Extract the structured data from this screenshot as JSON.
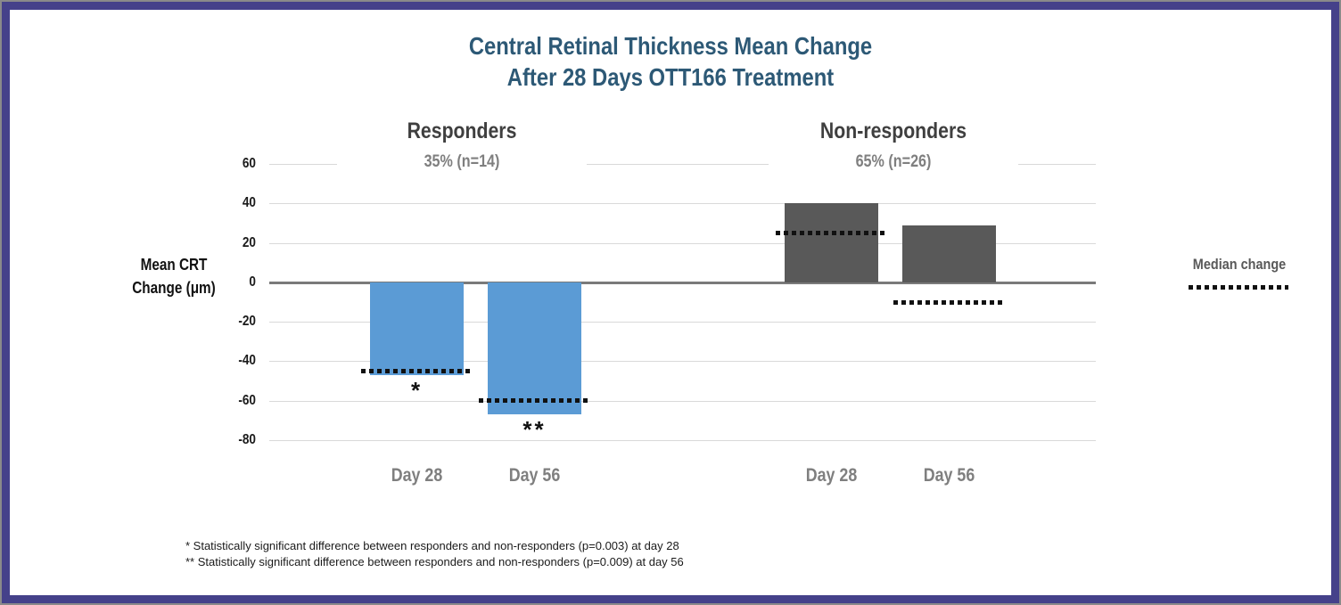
{
  "title": {
    "line1": "Central Retinal Thickness Mean Change",
    "line2": "After 28 Days OTT166 Treatment",
    "color": "#2d5976"
  },
  "y_axis": {
    "label": "Mean CRT Change (μm)",
    "label_lines": [
      "Mean CRT",
      "Change (μm)"
    ],
    "ticks": [
      60,
      40,
      20,
      0,
      -20,
      -40,
      -60,
      -80
    ]
  },
  "footnotes": [
    "* Statistically significant difference between responders and non-responders (p=0.003) at day 28",
    "** Statistically significant difference between responders and non-responders (p=0.009) at day 56"
  ],
  "palette": {
    "frame_border": "#45418a",
    "frame_outline": "#8a8a8a",
    "title_text": "#2d5976",
    "responder_bar": "#5b9bd5",
    "non_responder_bar": "#595959",
    "gridline": "#d9d9d9",
    "zero_axis": "#7a7a7a",
    "median_dots": "#111111"
  },
  "chart_data": {
    "type": "bar",
    "title": "Central Retinal Thickness Mean Change After 28 Days OTT166 Treatment",
    "xlabel": "",
    "ylabel": "Mean CRT Change (μm)",
    "ylim": [
      -80,
      60
    ],
    "ytick_step": 20,
    "grid": true,
    "categories": [
      "Day 28",
      "Day 56"
    ],
    "groups": [
      {
        "name": "Responders",
        "share_label": "35% (n=14)",
        "bar_color": "#5b9bd5",
        "bars": [
          {
            "label": "Day 28",
            "mean": -47,
            "median": -45,
            "significance": "*"
          },
          {
            "label": "Day 56",
            "mean": -67,
            "median": -60,
            "significance": "**"
          }
        ]
      },
      {
        "name": "Non-responders",
        "share_label": "65% (n=26)",
        "bar_color": "#595959",
        "bars": [
          {
            "label": "Day 28",
            "mean": 40,
            "median": 25,
            "significance": ""
          },
          {
            "label": "Day 56",
            "mean": 29,
            "median": -10,
            "significance": ""
          }
        ]
      }
    ],
    "median_line_style": "dotted",
    "legend": {
      "label": "Median change",
      "position": "right"
    }
  }
}
